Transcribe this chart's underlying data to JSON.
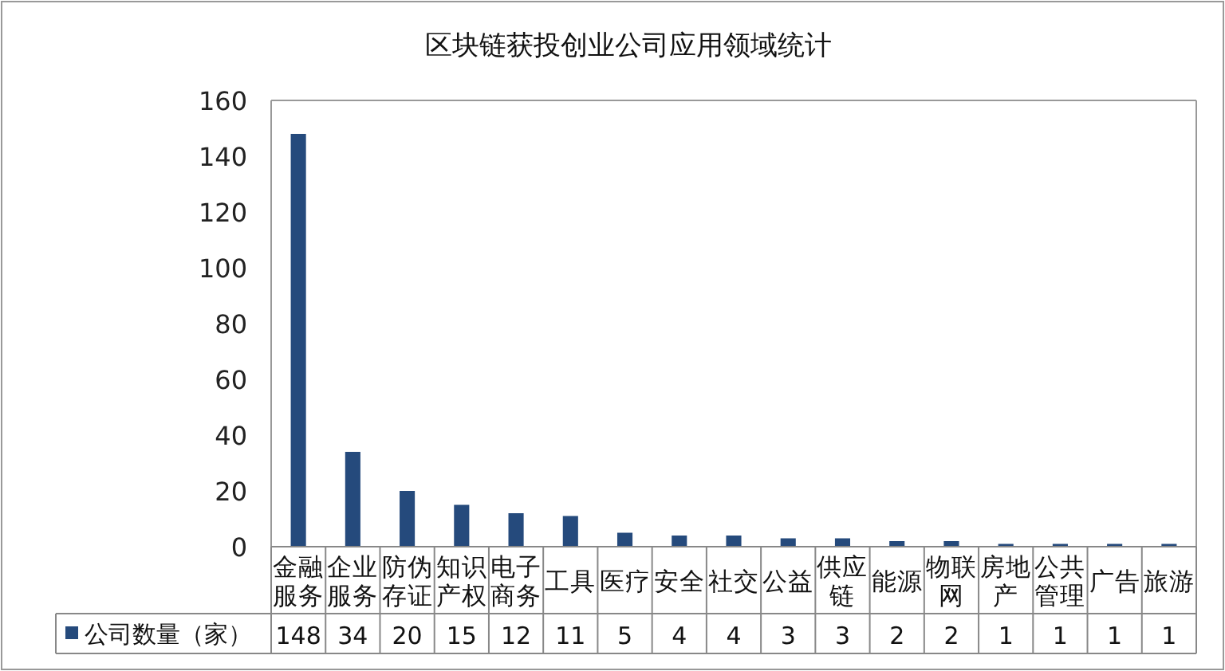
{
  "chart_data": {
    "type": "bar",
    "title": "区块链获投创业公司应用领域统计",
    "categories": [
      "金融服务",
      "企业服务",
      "防伪存证",
      "知识产权",
      "电子商务",
      "工具",
      "医疗",
      "安全",
      "社交",
      "公益",
      "供应链",
      "能源",
      "物联网",
      "房地产",
      "公共管理",
      "广告",
      "旅游"
    ],
    "series": [
      {
        "name": "公司数量（家）",
        "color": "#254a7c",
        "values": [
          148,
          34,
          20,
          15,
          12,
          11,
          5,
          4,
          4,
          3,
          3,
          2,
          2,
          1,
          1,
          1,
          1
        ]
      }
    ],
    "ylim": [
      0,
      160
    ],
    "yticks": [
      0,
      20,
      40,
      60,
      80,
      100,
      120,
      140,
      160
    ],
    "grid": false,
    "legend": "bottom",
    "data_labels": true
  }
}
